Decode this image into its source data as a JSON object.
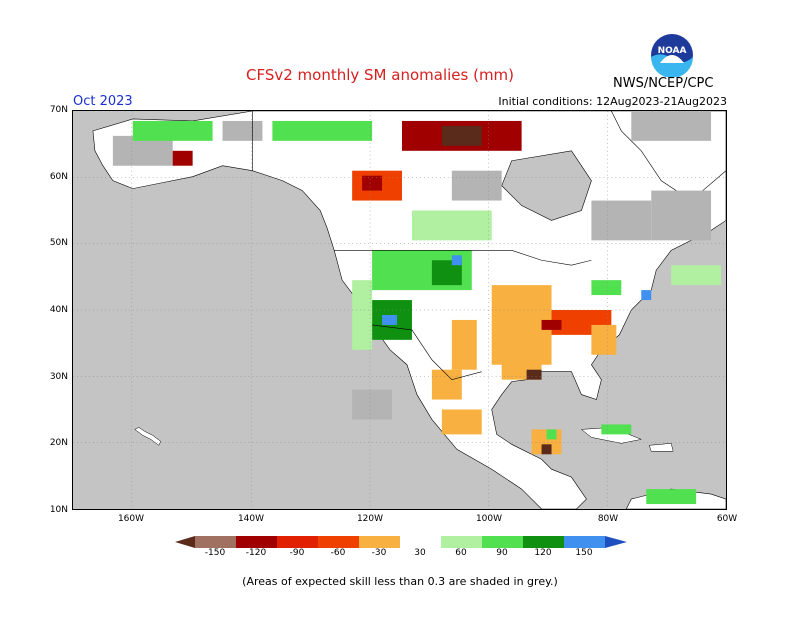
{
  "header": {
    "title": "CFSv2 monthly SM anomalies (mm)",
    "month": "Oct 2023",
    "initial_conditions": "Initial conditions: 12Aug2023-21Aug2023",
    "agency": "NWS/NCEP/CPC",
    "logo_text": "NOAA"
  },
  "map": {
    "latitude_labels": [
      "70N",
      "60N",
      "50N",
      "40N",
      "30N",
      "20N",
      "10N"
    ],
    "longitude_labels": [
      "160W",
      "140W",
      "120W",
      "100W",
      "80W",
      "60W"
    ],
    "colors": {
      "ocean": "#c4c4c4",
      "land_no_signal": "#ffffff",
      "low_skill": "#b4b4b4"
    }
  },
  "colorbar": {
    "labels": [
      "-150",
      "-120",
      "-90",
      "-60",
      "-30",
      "30",
      "60",
      "90",
      "120",
      "150"
    ],
    "colors": [
      "#5a2a1a",
      "#a07060",
      "#a00000",
      "#e02000",
      "#f04000",
      "#f8b040",
      "#ffffff",
      "#b0f0a0",
      "#50e050",
      "#109010",
      "#4090f0",
      "#2050c0"
    ]
  },
  "footnote": "(Areas of expected skill less than 0.3 are shaded in grey.)"
}
